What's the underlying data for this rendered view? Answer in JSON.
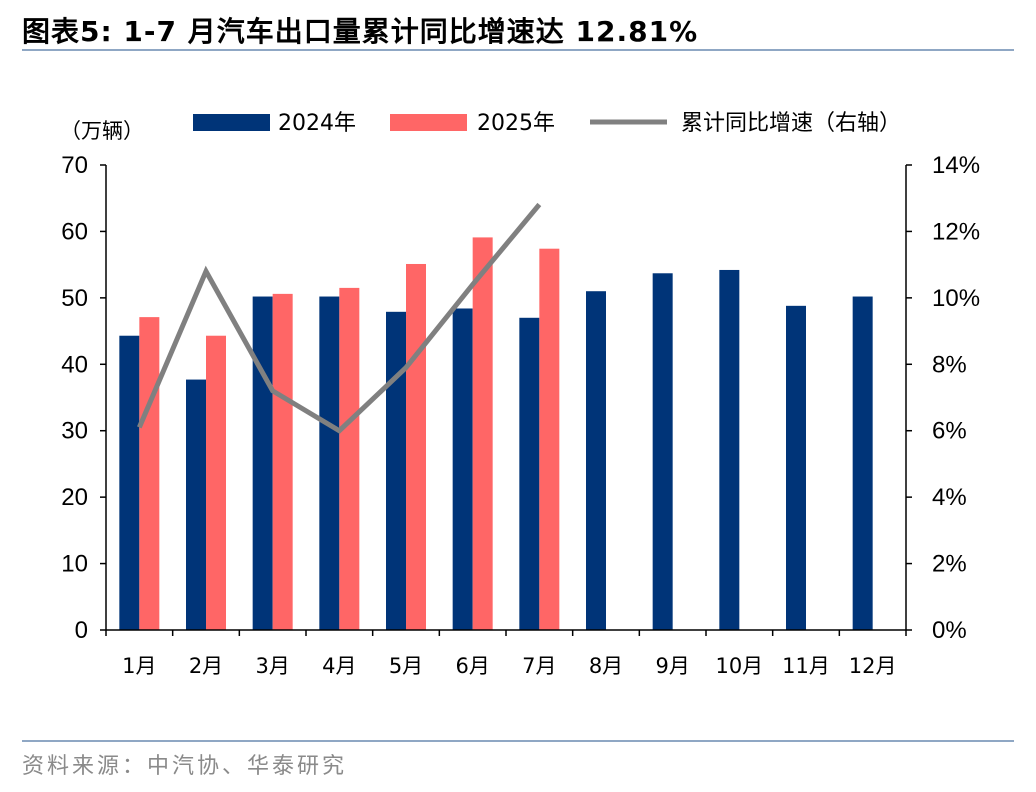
{
  "figure": {
    "title": "图表5:   1-7 月汽车出口量累计同比增速达 12.81%",
    "source": "资料来源：中汽协、华泰研究"
  },
  "chart_data": {
    "type": "bar",
    "categories": [
      "1月",
      "2月",
      "3月",
      "4月",
      "5月",
      "6月",
      "7月",
      "8月",
      "9月",
      "10月",
      "11月",
      "12月"
    ],
    "series": [
      {
        "name": "2024年",
        "type": "bar",
        "axis": "left",
        "color": "#003478",
        "values": [
          44.3,
          37.7,
          50.2,
          50.2,
          47.9,
          48.4,
          47.0,
          51.0,
          53.7,
          54.2,
          48.8,
          50.2
        ]
      },
      {
        "name": "2025年",
        "type": "bar",
        "axis": "left",
        "color": "#ff6666",
        "values": [
          47.1,
          44.3,
          50.6,
          51.5,
          55.1,
          59.1,
          57.4,
          null,
          null,
          null,
          null,
          null
        ]
      },
      {
        "name": "累计同比增速（右轴）",
        "type": "line",
        "axis": "right",
        "color": "#808080",
        "values": [
          6.1,
          10.8,
          7.2,
          6.0,
          7.9,
          10.4,
          12.81,
          null,
          null,
          null,
          null,
          null
        ]
      }
    ],
    "left_axis": {
      "unit_label": "（万辆）",
      "ylim": [
        0,
        70
      ],
      "ticks": [
        "0",
        "10",
        "20",
        "30",
        "40",
        "50",
        "60",
        "70"
      ]
    },
    "right_axis": {
      "ylim": [
        0,
        14
      ],
      "ticks": [
        "0%",
        "2%",
        "4%",
        "6%",
        "8%",
        "10%",
        "12%",
        "14%"
      ]
    },
    "legend": {
      "placement": "top-center"
    },
    "grid": false
  }
}
